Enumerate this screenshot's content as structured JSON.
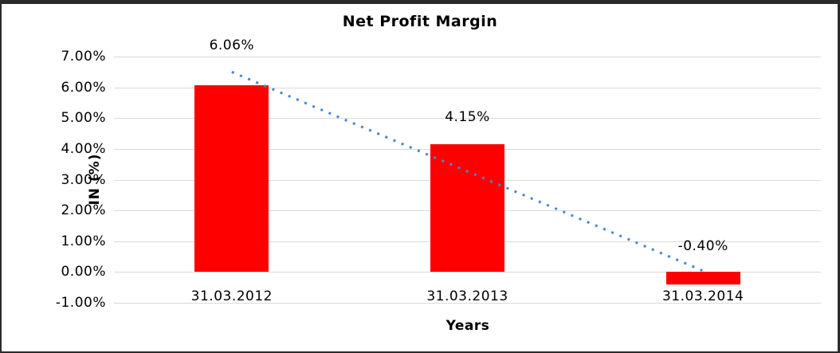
{
  "chart_data": {
    "type": "bar",
    "title": "Net Profit Margin",
    "xlabel": "Years",
    "ylabel": "IN (%)",
    "categories": [
      "31.03.2012",
      "31.03.2013",
      "31.03.2014"
    ],
    "values": [
      6.06,
      4.15,
      -0.4
    ],
    "value_labels": [
      "6.06%",
      "4.15%",
      "-0.40%"
    ],
    "ylim": [
      -1,
      7
    ],
    "ytick_step": 1,
    "ytick_labels": [
      "-1.00%",
      "0.00%",
      "1.00%",
      "2.00%",
      "3.00%",
      "4.00%",
      "5.00%",
      "6.00%",
      "7.00%"
    ],
    "grid": true,
    "legend": false,
    "bar_color": "#ff0000",
    "gridline_color": "#d9d9d9",
    "trendline": {
      "type": "linear",
      "style": "dotted",
      "color": "#4a86c8"
    }
  }
}
